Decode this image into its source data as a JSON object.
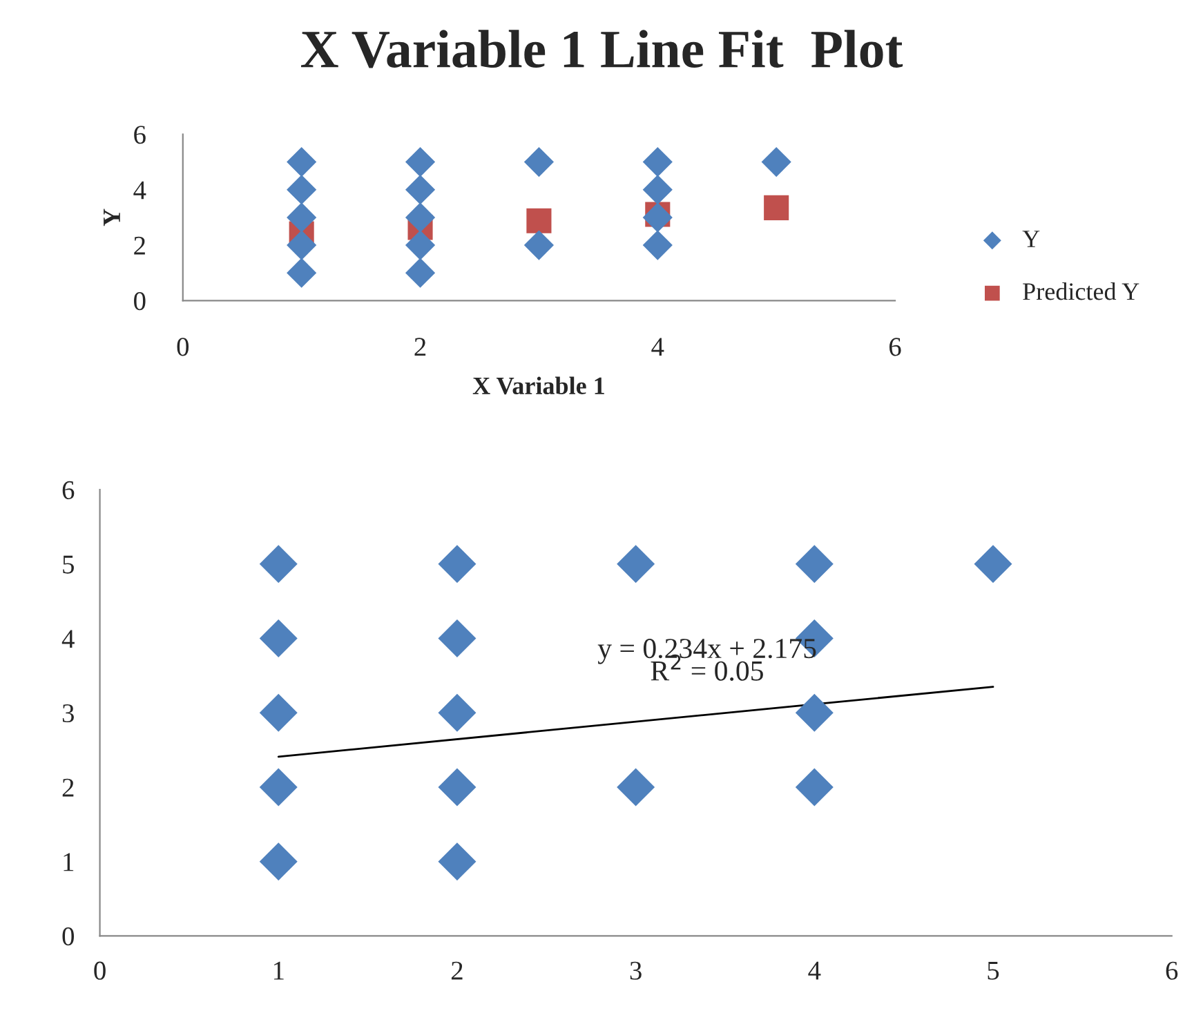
{
  "chart_data": [
    {
      "type": "scatter",
      "title": "X Variable 1 Line Fit  Plot",
      "xlabel": "X Variable 1",
      "ylabel": "Y",
      "xlim": [
        0,
        6
      ],
      "xticks": [
        0,
        2,
        4,
        6
      ],
      "ylim": [
        0,
        6
      ],
      "yticks": [
        0,
        2,
        4,
        6
      ],
      "grid": false,
      "legend": "right",
      "series": [
        {
          "name": "Y",
          "color": "#4f81bd",
          "marker": "diamond",
          "x": [
            1,
            1,
            1,
            1,
            1,
            2,
            2,
            2,
            2,
            2,
            3,
            3,
            4,
            4,
            4,
            4,
            5
          ],
          "values": [
            5,
            4,
            3,
            2,
            1,
            5,
            4,
            3,
            2,
            1,
            5,
            2,
            5,
            4,
            3,
            2,
            5
          ]
        },
        {
          "name": "Predicted Y",
          "color": "#c0504d",
          "marker": "square",
          "x": [
            1,
            2,
            3,
            4,
            5
          ],
          "values": [
            2.41,
            2.64,
            2.88,
            3.11,
            3.35
          ]
        }
      ]
    },
    {
      "type": "scatter",
      "xlim": [
        0,
        6
      ],
      "xticks": [
        0,
        1,
        2,
        3,
        4,
        5,
        6
      ],
      "ylim": [
        0,
        6
      ],
      "yticks": [
        0,
        1,
        2,
        3,
        4,
        5,
        6
      ],
      "grid": false,
      "legend": false,
      "annotations": [
        "y = 0.234x + 2.175",
        "R$^{2}$ = 0.05"
      ],
      "series": [
        {
          "color": "#4f81bd",
          "marker": "diamond",
          "x": [
            1,
            1,
            1,
            1,
            1,
            2,
            2,
            2,
            2,
            2,
            3,
            3,
            4,
            4,
            4,
            4,
            5
          ],
          "values": [
            5,
            4,
            3,
            2,
            1,
            5,
            4,
            3,
            2,
            1,
            5,
            2,
            5,
            4,
            3,
            2,
            5
          ]
        },
        {
          "type": "line",
          "color": "#000000",
          "marker": "none",
          "x": [
            1,
            5
          ],
          "values": [
            2.41,
            3.35
          ]
        }
      ]
    }
  ]
}
